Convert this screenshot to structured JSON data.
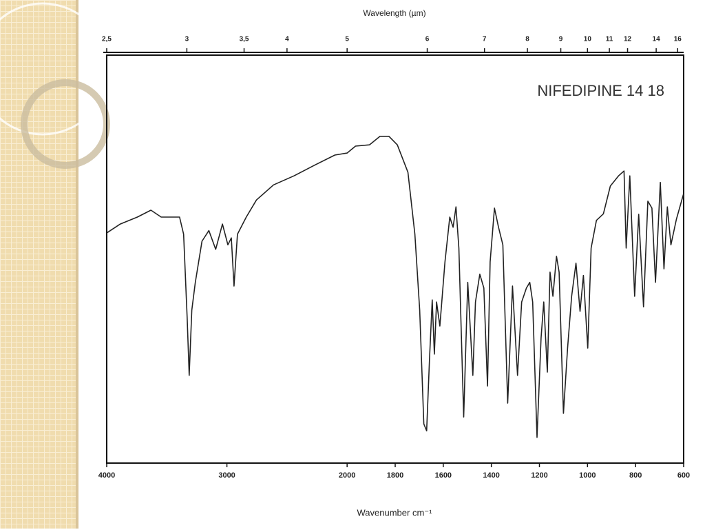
{
  "chart_data": {
    "type": "line",
    "title": "NIFEDIPINE     14   18",
    "x_label": "Wavenumber   cm⁻¹",
    "x2_label": "Wavelength (µm)",
    "x": [
      4000,
      3887,
      3745,
      3632,
      3547,
      3394,
      3360,
      3331,
      3314,
      3292,
      3263,
      3207,
      3150,
      3093,
      3037,
      2992,
      2963,
      2941,
      2912,
      2839,
      2754,
      2612,
      2442,
      2272,
      2102,
      2000,
      1965,
      1907,
      1863,
      1826,
      1791,
      1747,
      1718,
      1698,
      1681,
      1669,
      1657,
      1646,
      1637,
      1628,
      1614,
      1593,
      1573,
      1559,
      1547,
      1535,
      1515,
      1498,
      1477,
      1466,
      1448,
      1431,
      1416,
      1405,
      1387,
      1370,
      1352,
      1332,
      1312,
      1291,
      1274,
      1254,
      1240,
      1228,
      1210,
      1193,
      1182,
      1167,
      1156,
      1144,
      1129,
      1118,
      1100,
      1083,
      1066,
      1048,
      1031,
      1017,
      999,
      985,
      963,
      934,
      905,
      871,
      848,
      839,
      824,
      804,
      787,
      767,
      749,
      732,
      717,
      697,
      682,
      668,
      653,
      630,
      601
    ],
    "values": [
      56.4,
      58.6,
      60.3,
      62.0,
      60.3,
      60.3,
      56.1,
      35.8,
      21.5,
      37.5,
      44.3,
      54.4,
      57.0,
      52.4,
      58.6,
      53.5,
      55.2,
      43.4,
      56.1,
      60.3,
      64.5,
      68.2,
      70.4,
      73.0,
      75.5,
      76.0,
      77.7,
      78.0,
      80.1,
      80.1,
      78.0,
      71.3,
      56.1,
      37.5,
      9.6,
      7.9,
      25.7,
      40.0,
      26.7,
      39.5,
      33.6,
      49.3,
      60.3,
      57.8,
      62.8,
      52.7,
      11.3,
      44.3,
      21.5,
      39.5,
      46.3,
      42.9,
      18.9,
      49.3,
      62.5,
      57.8,
      53.5,
      14.7,
      43.4,
      21.5,
      39.5,
      42.9,
      44.3,
      39.5,
      6.3,
      30.7,
      39.5,
      22.3,
      46.8,
      40.9,
      50.7,
      46.8,
      12.2,
      28.2,
      40.9,
      49.0,
      37.2,
      46.0,
      28.2,
      52.7,
      59.5,
      61.1,
      67.9,
      70.4,
      71.6,
      52.7,
      70.4,
      40.9,
      61.0,
      38.3,
      64.2,
      62.5,
      44.3,
      68.8,
      47.6,
      62.8,
      53.5,
      59.8,
      65.9
    ],
    "color": "#222222",
    "xlim": [
      4000,
      600
    ],
    "x_scale_change_at": 2000,
    "x_scale_factor": 2,
    "ylim": [
      0,
      100
    ],
    "xticks": [
      4000,
      3000,
      2000,
      1800,
      1600,
      1400,
      1200,
      1000,
      800,
      600
    ],
    "x2ticks": [
      {
        "value": 2.5,
        "label": "2,5"
      },
      3,
      {
        "value": 3.5,
        "label": "3,5"
      },
      4,
      5,
      6,
      7,
      8,
      9,
      10,
      11,
      12,
      14,
      16
    ]
  }
}
